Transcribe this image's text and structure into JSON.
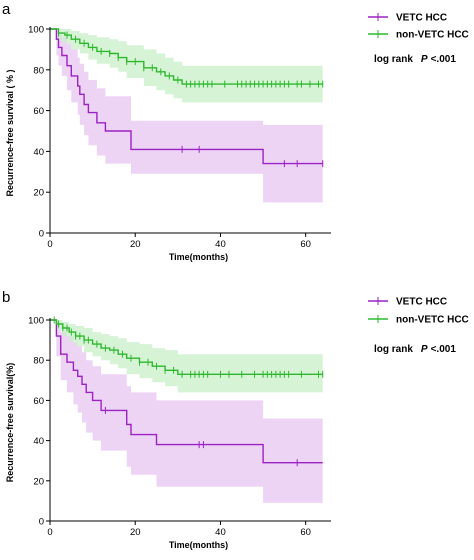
{
  "figure": {
    "colors": {
      "vetc": "#9b22c4",
      "nonvetc": "#2eb82e",
      "vetc_band": "#e7c6f1",
      "nonvetc_band": "#c8efc8"
    }
  },
  "chart_data": [
    {
      "panel": "a",
      "type": "line",
      "xlabel": "Time(months)",
      "ylabel": "Recurrence-free survival ( % )",
      "xlim": [
        0,
        65
      ],
      "ylim": [
        0,
        100
      ],
      "xticks": [
        0,
        20,
        40,
        60
      ],
      "yticks": [
        0,
        20,
        40,
        60,
        80,
        100
      ],
      "legend_position": "top-right",
      "annotation": {
        "prefix": "log rank",
        "p_symbol": "P",
        "p_value": "<.001"
      },
      "series": [
        {
          "name": "VETC HCC",
          "color": "#9b22c4",
          "band_color": "#e7c6f1",
          "steps": [
            [
              0,
              100
            ],
            [
              1.5,
              95
            ],
            [
              2,
              91
            ],
            [
              2.8,
              87
            ],
            [
              4,
              82
            ],
            [
              5,
              77
            ],
            [
              6.5,
              72
            ],
            [
              7,
              68
            ],
            [
              8,
              63
            ],
            [
              9,
              59
            ],
            [
              11,
              54
            ],
            [
              13,
              50
            ],
            [
              19,
              41
            ],
            [
              50,
              34
            ],
            [
              64,
              34
            ]
          ],
          "ci_lower": [
            [
              0,
              100
            ],
            [
              1.5,
              87
            ],
            [
              2,
              82
            ],
            [
              2.8,
              77
            ],
            [
              4,
              70
            ],
            [
              5,
              64
            ],
            [
              6.5,
              58
            ],
            [
              7,
              53
            ],
            [
              8,
              48
            ],
            [
              9,
              43
            ],
            [
              11,
              38
            ],
            [
              13,
              34
            ],
            [
              19,
              29
            ],
            [
              50,
              15
            ],
            [
              64,
              15
            ]
          ],
          "ci_upper": [
            [
              0,
              100
            ],
            [
              1.5,
              99
            ],
            [
              2,
              98
            ],
            [
              2.8,
              96
            ],
            [
              4,
              93
            ],
            [
              5,
              90
            ],
            [
              6.5,
              86
            ],
            [
              7,
              83
            ],
            [
              8,
              79
            ],
            [
              9,
              75
            ],
            [
              11,
              71
            ],
            [
              13,
              67
            ],
            [
              19,
              55
            ],
            [
              50,
              53
            ],
            [
              64,
              53
            ]
          ],
          "censor_times": [
            31,
            35,
            55,
            58,
            64
          ]
        },
        {
          "name": "non-VETC HCC",
          "color": "#2eb82e",
          "band_color": "#c8efc8",
          "steps": [
            [
              0,
              100
            ],
            [
              2,
              98
            ],
            [
              3.5,
              97
            ],
            [
              5,
              95
            ],
            [
              7,
              93
            ],
            [
              9,
              91
            ],
            [
              11,
              89
            ],
            [
              14,
              88
            ],
            [
              16,
              86
            ],
            [
              18,
              84
            ],
            [
              22,
              81
            ],
            [
              25,
              79
            ],
            [
              27,
              77
            ],
            [
              29,
              75
            ],
            [
              31,
              73
            ],
            [
              64,
              73
            ]
          ],
          "ci_lower": [
            [
              0,
              100
            ],
            [
              2,
              94
            ],
            [
              3.5,
              93
            ],
            [
              5,
              90
            ],
            [
              7,
              88
            ],
            [
              9,
              85
            ],
            [
              11,
              83
            ],
            [
              14,
              81
            ],
            [
              16,
              79
            ],
            [
              18,
              76
            ],
            [
              22,
              72
            ],
            [
              25,
              70
            ],
            [
              27,
              68
            ],
            [
              29,
              66
            ],
            [
              31,
              64
            ],
            [
              64,
              64
            ]
          ],
          "ci_upper": [
            [
              0,
              100
            ],
            [
              2,
              100
            ],
            [
              3.5,
              100
            ],
            [
              5,
              99
            ],
            [
              7,
              98
            ],
            [
              9,
              97
            ],
            [
              11,
              96
            ],
            [
              14,
              95
            ],
            [
              16,
              94
            ],
            [
              18,
              92
            ],
            [
              22,
              90
            ],
            [
              25,
              88
            ],
            [
              27,
              86
            ],
            [
              29,
              84
            ],
            [
              31,
              82
            ],
            [
              64,
              82
            ]
          ],
          "censor_times": [
            2,
            4,
            6,
            8,
            10,
            12,
            14,
            16,
            18,
            20,
            22,
            24,
            26,
            28,
            30,
            32,
            33,
            34,
            35,
            36,
            37,
            38,
            41,
            44,
            45,
            46,
            47,
            48,
            49,
            50,
            51,
            52,
            53,
            54,
            55,
            56,
            58,
            59,
            61,
            63,
            64
          ]
        }
      ]
    },
    {
      "panel": "b",
      "type": "line",
      "xlabel": "Time(months)",
      "ylabel": "Recurrence-free survival(%)",
      "xlim": [
        0,
        65
      ],
      "ylim": [
        0,
        100
      ],
      "xticks": [
        0,
        20,
        40,
        60
      ],
      "yticks": [
        0,
        20,
        40,
        60,
        80,
        100
      ],
      "legend_position": "top-right",
      "annotation": {
        "prefix": "log rank",
        "p_symbol": "P",
        "p_value": "<.001"
      },
      "series": [
        {
          "name": "VETC HCC",
          "color": "#9b22c4",
          "band_color": "#e7c6f1",
          "steps": [
            [
              0,
              100
            ],
            [
              1.5,
              92
            ],
            [
              2.5,
              83
            ],
            [
              4,
              79
            ],
            [
              5.5,
              75
            ],
            [
              6.5,
              72
            ],
            [
              7.5,
              68
            ],
            [
              8.5,
              64
            ],
            [
              10,
              60
            ],
            [
              12,
              55
            ],
            [
              18,
              48
            ],
            [
              19,
              43
            ],
            [
              25,
              38
            ],
            [
              50,
              29
            ],
            [
              64,
              29
            ]
          ],
          "ci_lower": [
            [
              0,
              100
            ],
            [
              1.5,
              82
            ],
            [
              2.5,
              70
            ],
            [
              4,
              64
            ],
            [
              5.5,
              58
            ],
            [
              6.5,
              54
            ],
            [
              7.5,
              49
            ],
            [
              8.5,
              44
            ],
            [
              10,
              40
            ],
            [
              12,
              35
            ],
            [
              18,
              27
            ],
            [
              19,
              23
            ],
            [
              25,
              17
            ],
            [
              50,
              9
            ],
            [
              64,
              9
            ]
          ],
          "ci_upper": [
            [
              0,
              100
            ],
            [
              1.5,
              98
            ],
            [
              2.5,
              94
            ],
            [
              4,
              92
            ],
            [
              5.5,
              89
            ],
            [
              6.5,
              87
            ],
            [
              7.5,
              84
            ],
            [
              8.5,
              80
            ],
            [
              10,
              77
            ],
            [
              12,
              73
            ],
            [
              18,
              67
            ],
            [
              19,
              64
            ],
            [
              25,
              60
            ],
            [
              50,
              51
            ],
            [
              64,
              51
            ]
          ],
          "censor_times": [
            13,
            35,
            36,
            58
          ]
        },
        {
          "name": "non-VETC HCC",
          "color": "#2eb82e",
          "band_color": "#c8efc8",
          "steps": [
            [
              0,
              100
            ],
            [
              1.5,
              98
            ],
            [
              3,
              96
            ],
            [
              4.5,
              94
            ],
            [
              6,
              92
            ],
            [
              8,
              90
            ],
            [
              10,
              88
            ],
            [
              12,
              86
            ],
            [
              14,
              85
            ],
            [
              16,
              83
            ],
            [
              18,
              81
            ],
            [
              21,
              79
            ],
            [
              24,
              77
            ],
            [
              27,
              75
            ],
            [
              30,
              73
            ],
            [
              64,
              73
            ]
          ],
          "ci_lower": [
            [
              0,
              100
            ],
            [
              1.5,
              95
            ],
            [
              3,
              92
            ],
            [
              4.5,
              89
            ],
            [
              6,
              87
            ],
            [
              8,
              84
            ],
            [
              10,
              82
            ],
            [
              12,
              80
            ],
            [
              14,
              78
            ],
            [
              16,
              76
            ],
            [
              18,
              73
            ],
            [
              21,
              71
            ],
            [
              24,
              69
            ],
            [
              27,
              67
            ],
            [
              30,
              64
            ],
            [
              64,
              61
            ]
          ],
          "ci_upper": [
            [
              0,
              100
            ],
            [
              1.5,
              100
            ],
            [
              3,
              99
            ],
            [
              4.5,
              98
            ],
            [
              6,
              97
            ],
            [
              8,
              96
            ],
            [
              10,
              94
            ],
            [
              12,
              93
            ],
            [
              14,
              92
            ],
            [
              16,
              91
            ],
            [
              18,
              89
            ],
            [
              21,
              88
            ],
            [
              24,
              86
            ],
            [
              27,
              85
            ],
            [
              30,
              83
            ],
            [
              64,
              82
            ]
          ],
          "censor_times": [
            1,
            2,
            3,
            4,
            5,
            6,
            7,
            8,
            9,
            11,
            13,
            15,
            17,
            19,
            21,
            23,
            25,
            27,
            29,
            31,
            33,
            34,
            35,
            36,
            37,
            40,
            42,
            45,
            48,
            50,
            51,
            52,
            53,
            54,
            55,
            56,
            59,
            63,
            64
          ]
        }
      ]
    }
  ]
}
